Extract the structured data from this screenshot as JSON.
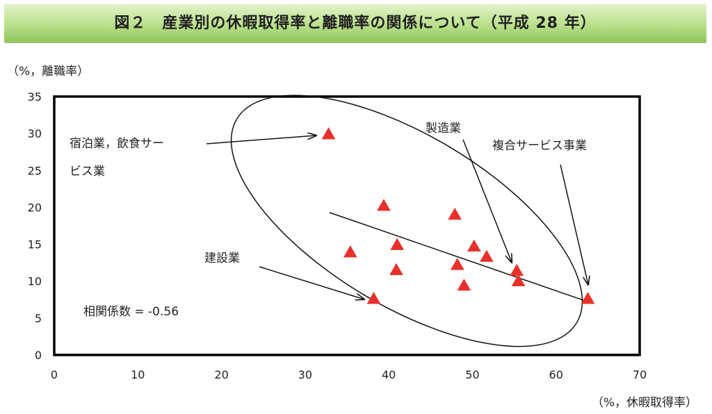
{
  "title": "図２　産業別の休暇取得率と離職率の関係について（平成 28 年）",
  "chart_data": {
    "type": "scatter",
    "xlabel": "（%，休暇取得率）",
    "ylabel": "（%，離職率）",
    "xlim": [
      0,
      70
    ],
    "ylim": [
      0,
      35
    ],
    "x_ticks": [
      0,
      10,
      20,
      30,
      40,
      50,
      60,
      70
    ],
    "y_ticks": [
      0,
      5,
      10,
      15,
      20,
      25,
      30,
      35
    ],
    "grid": false,
    "marker": "triangle",
    "marker_color": "#e8302a",
    "points": [
      {
        "x": 32.8,
        "y": 29.9
      },
      {
        "x": 39.4,
        "y": 20.2
      },
      {
        "x": 47.9,
        "y": 19.0
      },
      {
        "x": 35.4,
        "y": 13.9
      },
      {
        "x": 41.0,
        "y": 14.9
      },
      {
        "x": 50.2,
        "y": 14.7
      },
      {
        "x": 51.7,
        "y": 13.3
      },
      {
        "x": 48.2,
        "y": 12.2
      },
      {
        "x": 40.9,
        "y": 11.5
      },
      {
        "x": 55.3,
        "y": 11.4
      },
      {
        "x": 55.5,
        "y": 10.0
      },
      {
        "x": 49.0,
        "y": 9.4
      },
      {
        "x": 38.2,
        "y": 7.6
      },
      {
        "x": 63.8,
        "y": 7.6
      }
    ],
    "trendline": {
      "x": [
        32.9,
        63.3
      ],
      "y": [
        19.3,
        7.4
      ]
    },
    "annotations": [
      {
        "id": "lodging",
        "lines": [
          "宿泊業，飲食サー",
          "ビス業"
        ],
        "point": {
          "x": 32.8,
          "y": 29.9
        }
      },
      {
        "id": "manufacturing",
        "lines": [
          "製造業"
        ],
        "point": {
          "x": 55.3,
          "y": 11.4
        }
      },
      {
        "id": "compound",
        "lines": [
          "複合サービス事業"
        ],
        "point": {
          "x": 63.8,
          "y": 7.6
        }
      },
      {
        "id": "construction",
        "lines": [
          "建設業"
        ],
        "point": {
          "x": 38.2,
          "y": 7.6
        }
      }
    ],
    "correlation": "相関係数 = -0.56"
  }
}
